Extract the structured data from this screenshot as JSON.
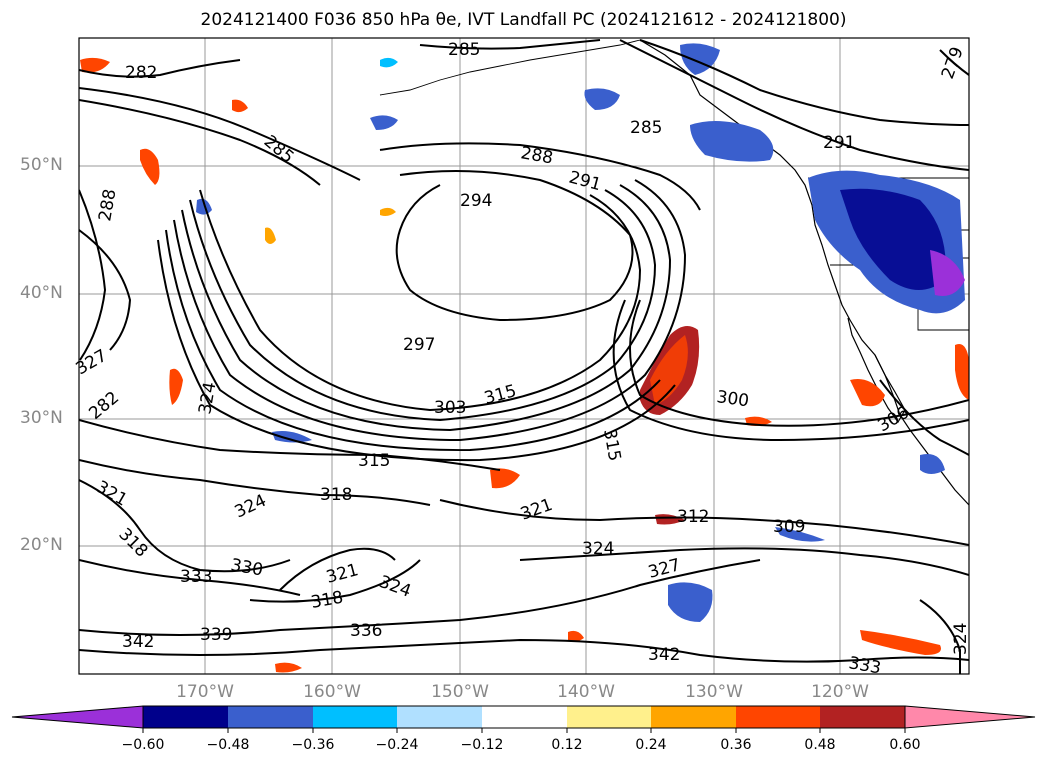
{
  "title": "2024121400 F036 850 hPa θe, IVT Landfall PC (2024121612 - 2024121800)",
  "lat_labels": [
    "50°N",
    "40°N",
    "30°N",
    "20°N"
  ],
  "lon_labels": [
    "170°W",
    "160°W",
    "150°W",
    "140°W",
    "130°W",
    "120°W"
  ],
  "contour_labels": [
    "282",
    "285",
    "285",
    "285",
    "288",
    "288",
    "291",
    "291",
    "294",
    "297",
    "300",
    "303",
    "306",
    "309",
    "312",
    "315",
    "315",
    "315",
    "318",
    "318",
    "321",
    "321",
    "324",
    "324",
    "324",
    "324",
    "327",
    "327",
    "330",
    "333",
    "333",
    "336",
    "339",
    "342",
    "342",
    "324",
    "318",
    "321",
    "279",
    "282"
  ],
  "colorbar": {
    "ticks": [
      "−0.60",
      "−0.48",
      "−0.36",
      "−0.24",
      "−0.12",
      "0.12",
      "0.24",
      "0.36",
      "0.48",
      "0.60"
    ],
    "colors": [
      "#9b30d9",
      "#00008b",
      "#3a5fcd",
      "#00bfff",
      "#b0e0ff",
      "#ffffff",
      "#fff08c",
      "#ffa500",
      "#ff4500",
      "#b22222",
      "#ff88aa"
    ]
  }
}
